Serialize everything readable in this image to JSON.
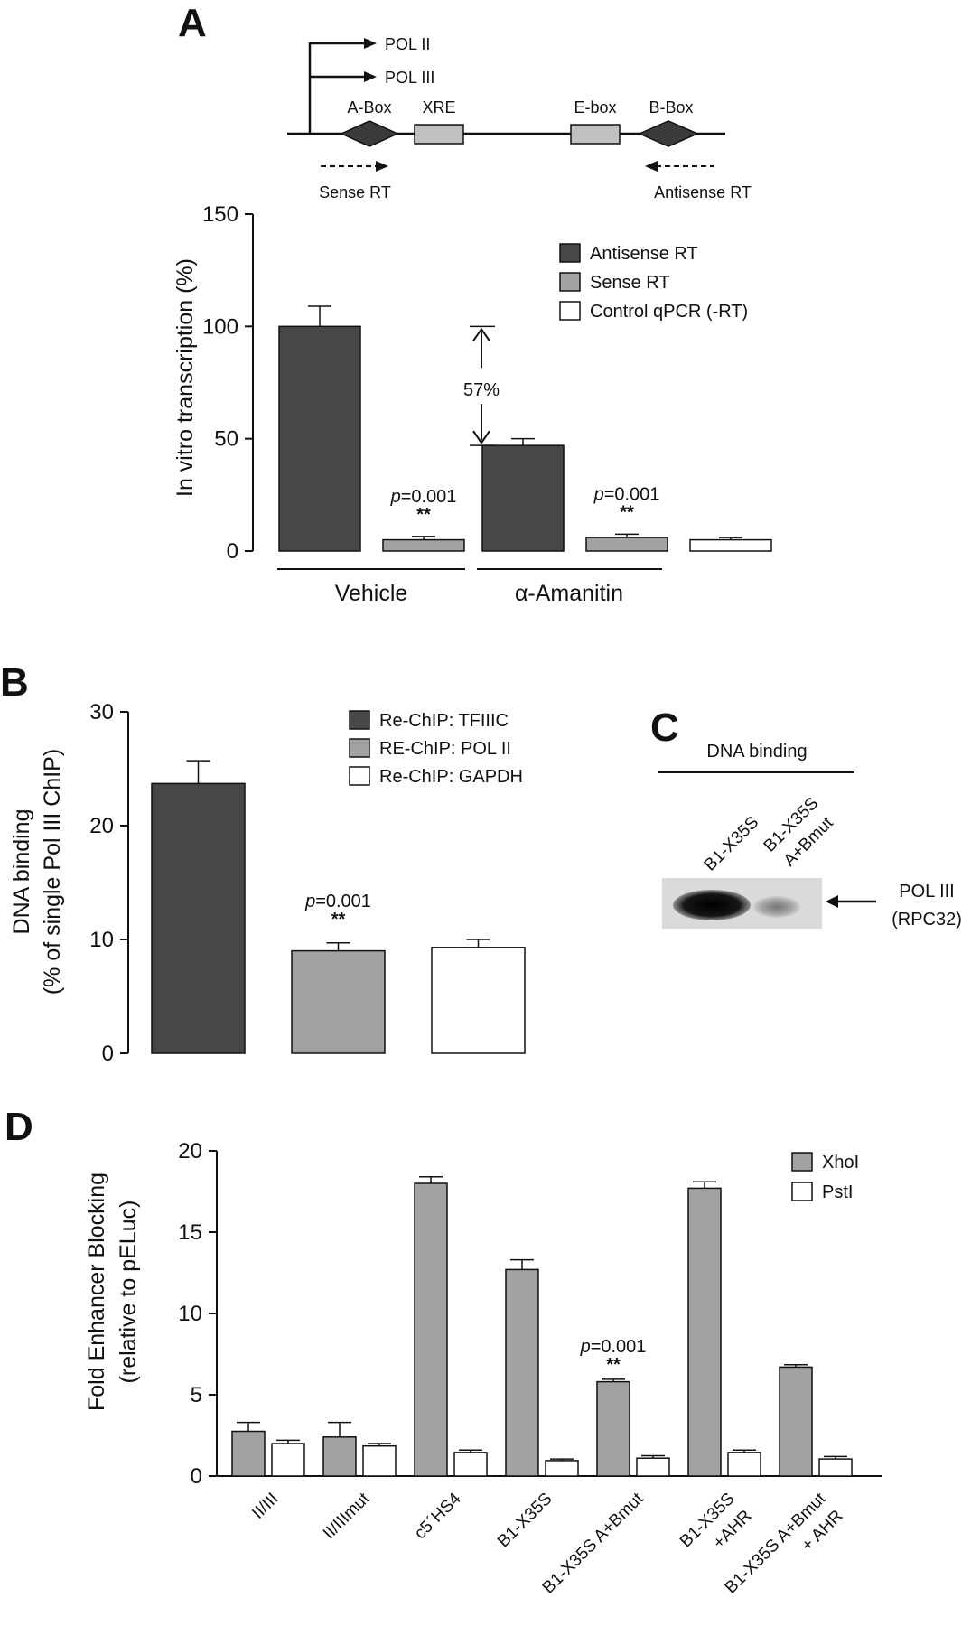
{
  "panels": {
    "A": {
      "letter": "A",
      "diagram": {
        "pol2": "POL II",
        "pol3": "POL III",
        "abox": "A-Box",
        "xre": "XRE",
        "ebox": "E-box",
        "bbox": "B-Box",
        "sense": "Sense RT",
        "antisense": "Antisense RT"
      },
      "chart": {
        "type": "bar",
        "ylabel": "In vitro transcription (%)",
        "ylim": [
          0,
          150
        ],
        "yticks": [
          0,
          50,
          100,
          150
        ],
        "groups": [
          "Vehicle",
          "α-Amanitin"
        ],
        "legend": [
          "Antisense RT",
          "Sense RT",
          "Control qPCR (-RT)"
        ],
        "bars": [
          {
            "series": 0,
            "value": 100,
            "err": 9
          },
          {
            "series": 1,
            "value": 5,
            "err": 1.5,
            "p": "=0.001",
            "sig": "**"
          },
          {
            "series": 0,
            "value": 47,
            "err": 3
          },
          {
            "series": 1,
            "value": 6,
            "err": 1.5,
            "p": "=0.001",
            "sig": "**"
          },
          {
            "series": 2,
            "value": 5,
            "err": 1
          }
        ],
        "annotation": "57%"
      }
    },
    "B": {
      "letter": "B",
      "chart": {
        "type": "bar",
        "ylabel1": "DNA binding",
        "ylabel2": "(% of single Pol III ChIP)",
        "ylim": [
          0,
          30
        ],
        "yticks": [
          0,
          10,
          20,
          30
        ],
        "legend": [
          "Re-ChIP: TFIIIC",
          "RE-ChIP: POL II",
          "Re-ChIP: GAPDH"
        ],
        "bars": [
          {
            "series": 0,
            "value": 23.7,
            "err": 2.0
          },
          {
            "series": 1,
            "value": 9.0,
            "err": 0.7,
            "p": "=0.001",
            "sig": "**"
          },
          {
            "series": 2,
            "value": 9.3,
            "err": 0.7
          }
        ]
      }
    },
    "C": {
      "letter": "C",
      "title": "DNA binding",
      "lane1": "B1-X35S",
      "lane2a": "B1-X35S",
      "lane2b": "A+Bmut",
      "band1": "POL III",
      "band2": "(RPC32)"
    },
    "D": {
      "letter": "D",
      "chart": {
        "type": "bar",
        "ylabel1": "Fold Enhancer Blocking",
        "ylabel2": "(relative to pELuc)",
        "ylim": [
          0,
          20
        ],
        "yticks": [
          0,
          5,
          10,
          15,
          20
        ],
        "legend": [
          "XhoI",
          "PstI"
        ],
        "categories": [
          [
            "II/III"
          ],
          [
            "II/IIImut"
          ],
          [
            "c5´HS4"
          ],
          [
            "B1-X35S"
          ],
          [
            "B1-X35S A+Bmut"
          ],
          [
            "B1-X35S",
            "+AHR"
          ],
          [
            "B1-X35S A+Bmut",
            "+ AHR"
          ]
        ],
        "series": [
          {
            "name": "XhoI",
            "values": [
              2.75,
              2.4,
              18.0,
              12.7,
              5.8,
              17.7,
              6.7
            ],
            "errors": [
              0.55,
              0.9,
              0.4,
              0.6,
              0.15,
              0.4,
              0.15
            ]
          },
          {
            "name": "PstI",
            "values": [
              2.0,
              1.85,
              1.45,
              0.95,
              1.1,
              1.45,
              1.05
            ],
            "errors": [
              0.2,
              0.15,
              0.15,
              0.1,
              0.15,
              0.15,
              0.15
            ]
          }
        ],
        "annot_index": 4,
        "p": "=0.001",
        "sig": "**"
      }
    }
  },
  "colors": {
    "dark": "#474747",
    "mid": "#a2a2a2",
    "light": "#ffffff",
    "stroke": "#111111"
  }
}
